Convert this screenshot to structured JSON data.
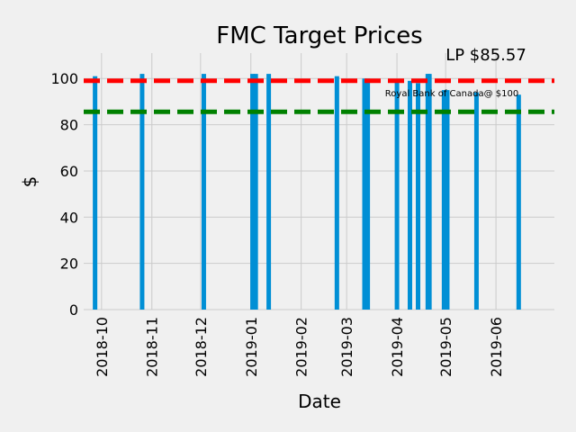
{
  "chart_data": {
    "type": "bar",
    "title": "FMC Target Prices",
    "xlabel": "Date",
    "ylabel": "$",
    "x_range": [
      "2018-09-20",
      "2019-07-07"
    ],
    "ylim": [
      0,
      111
    ],
    "y_ticks": [
      0,
      20,
      40,
      60,
      80,
      100
    ],
    "x_ticks": [
      "2018-10",
      "2018-11",
      "2018-12",
      "2019-01",
      "2019-02",
      "2019-03",
      "2019-04",
      "2019-05",
      "2019-06"
    ],
    "grid": true,
    "bars": [
      {
        "date": "2018-09-27",
        "value": 101
      },
      {
        "date": "2018-10-26",
        "value": 102
      },
      {
        "date": "2018-12-03",
        "value": 102
      },
      {
        "date": "2019-01-02",
        "value": 102
      },
      {
        "date": "2019-01-04",
        "value": 102
      },
      {
        "date": "2019-01-12",
        "value": 102
      },
      {
        "date": "2019-02-23",
        "value": 101
      },
      {
        "date": "2019-03-12",
        "value": 100
      },
      {
        "date": "2019-03-14",
        "value": 100
      },
      {
        "date": "2019-04-01",
        "value": 99
      },
      {
        "date": "2019-04-09",
        "value": 99
      },
      {
        "date": "2019-04-14",
        "value": 98
      },
      {
        "date": "2019-04-20",
        "value": 102
      },
      {
        "date": "2019-04-21",
        "value": 102
      },
      {
        "date": "2019-04-30",
        "value": 95
      },
      {
        "date": "2019-05-02",
        "value": 95
      },
      {
        "date": "2019-05-20",
        "value": 94
      },
      {
        "date": "2019-06-15",
        "value": 93
      }
    ],
    "reference_lines": [
      {
        "value": 99,
        "color": "#ff0000"
      },
      {
        "value": 85.57,
        "color": "#008000"
      }
    ],
    "annotations": [
      {
        "text": "LP $85.57"
      },
      {
        "text": "Royal Bank of Canada@ $100"
      }
    ],
    "colors": {
      "bar": "#008fd5",
      "background": "#f0f0f0",
      "grid": "#cbcbcb"
    }
  }
}
